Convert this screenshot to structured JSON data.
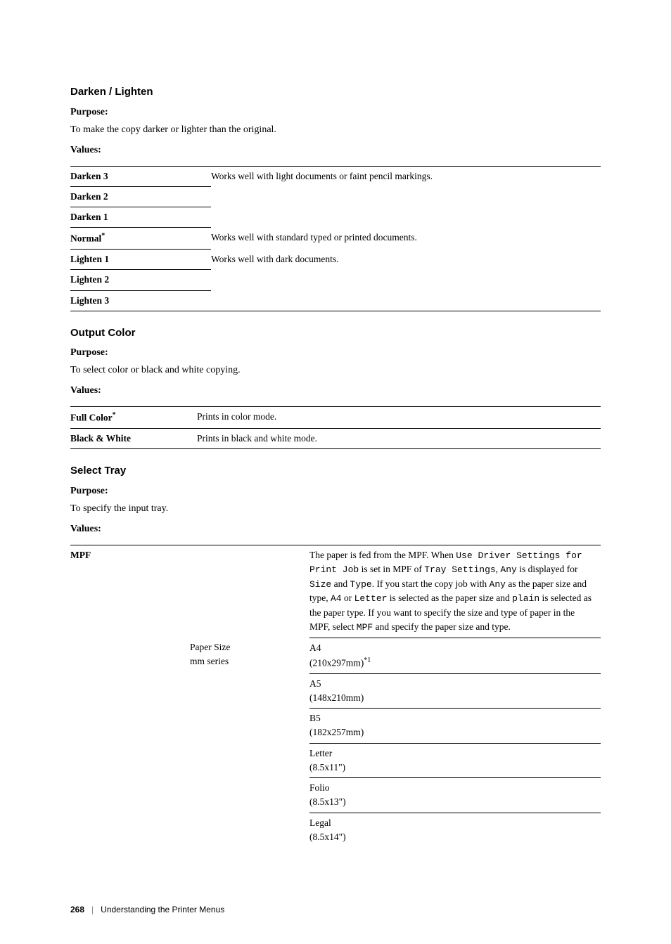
{
  "sections": {
    "darken_lighten": {
      "heading": "Darken / Lighten",
      "purpose_label": "Purpose:",
      "purpose_text": "To make the copy darker or lighter than the original.",
      "values_label": "Values:",
      "rows": [
        {
          "label": "Darken 3",
          "desc": "Works well with light documents or faint pencil markings."
        },
        {
          "label": "Darken 2",
          "desc": ""
        },
        {
          "label": "Darken 1",
          "desc": ""
        },
        {
          "label": "Normal",
          "sup": "*",
          "desc": "Works well with standard typed or printed documents."
        },
        {
          "label": "Lighten 1",
          "desc": "Works well with dark documents."
        },
        {
          "label": "Lighten 2",
          "desc": ""
        },
        {
          "label": "Lighten 3",
          "desc": ""
        }
      ]
    },
    "output_color": {
      "heading": "Output Color",
      "purpose_label": "Purpose:",
      "purpose_text": "To select color or black and white copying.",
      "values_label": "Values:",
      "rows": [
        {
          "label": "Full Color",
          "sup": "*",
          "desc": "Prints in color mode."
        },
        {
          "label": "Black & White",
          "desc": "Prints in black and white mode."
        }
      ]
    },
    "select_tray": {
      "heading": "Select Tray",
      "purpose_label": "Purpose:",
      "purpose_text": "To specify the input tray.",
      "values_label": "Values:",
      "mpf_label": "MPF",
      "mpf_desc_html": "The paper is fed from the MPF. When <span class=\"mono\">Use Driver Settings for Print Job</span> is set in MPF of <span class=\"mono\">Tray Settings</span>, <span class=\"mono\">Any</span> is displayed for <span class=\"mono\">Size</span> and <span class=\"mono\">Type</span>.  If you start the copy job with <span class=\"mono\">Any</span> as the paper size and type, <span class=\"mono\">A4</span> or <span class=\"mono\">Letter</span> is selected as the paper size and <span class=\"mono\">plain</span> is selected as the paper type. If you want to specify the size and type of paper in the MPF, select <span class=\"mono\">MPF</span> and specify the paper size and type.",
      "paper_size_label": "Paper Size",
      "paper_size_sub": "mm series",
      "sizes": [
        {
          "name": "A4",
          "dim": "(210x297mm)",
          "sup": "*1"
        },
        {
          "name": "A5",
          "dim": "(148x210mm)"
        },
        {
          "name": "B5",
          "dim": "(182x257mm)"
        },
        {
          "name": "Letter",
          "dim": "(8.5x11\")"
        },
        {
          "name": "Folio",
          "dim": "(8.5x13\")"
        },
        {
          "name": "Legal",
          "dim": "(8.5x14\")"
        }
      ]
    }
  },
  "footer": {
    "page": "268",
    "crumb": "Understanding the Printer Menus"
  }
}
